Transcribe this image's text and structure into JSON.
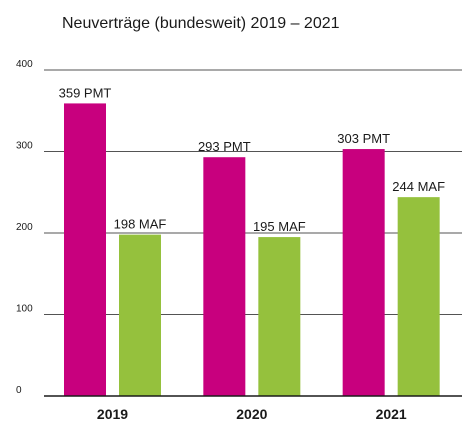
{
  "chart_data": {
    "type": "bar",
    "title": "Neuverträge (bundesweit) 2019 – 2021",
    "categories": [
      "2019",
      "2020",
      "2021"
    ],
    "series": [
      {
        "values": [
          359,
          293,
          303
        ],
        "labels": [
          "359 PMT",
          "293 PMT",
          "303 PMT"
        ]
      },
      {
        "values": [
          198,
          195,
          244
        ],
        "labels": [
          "198 MAF",
          "195 MAF",
          "244 MAF"
        ]
      }
    ],
    "colors": [
      "#c8007e",
      "#95c13d"
    ],
    "ylim": [
      0,
      400
    ],
    "yticks": [
      "0",
      "100",
      "200",
      "300",
      "400"
    ],
    "grid": true,
    "xlabel": "",
    "ylabel": ""
  }
}
